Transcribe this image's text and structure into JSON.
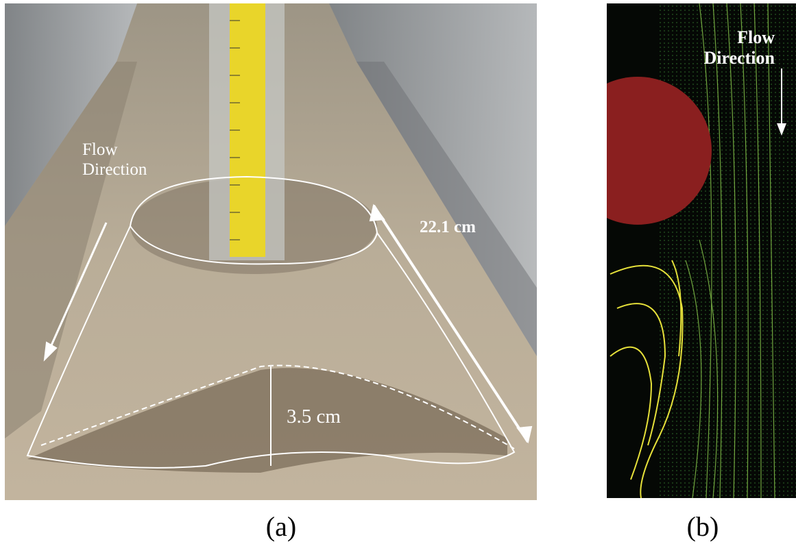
{
  "panels": [
    {
      "caption": "(a)",
      "flow_label": "Flow Direction",
      "length_label": "22.1 cm",
      "depth_label": "3.5 cm"
    },
    {
      "caption": "(b)",
      "flow_label": "Flow Direction"
    }
  ]
}
